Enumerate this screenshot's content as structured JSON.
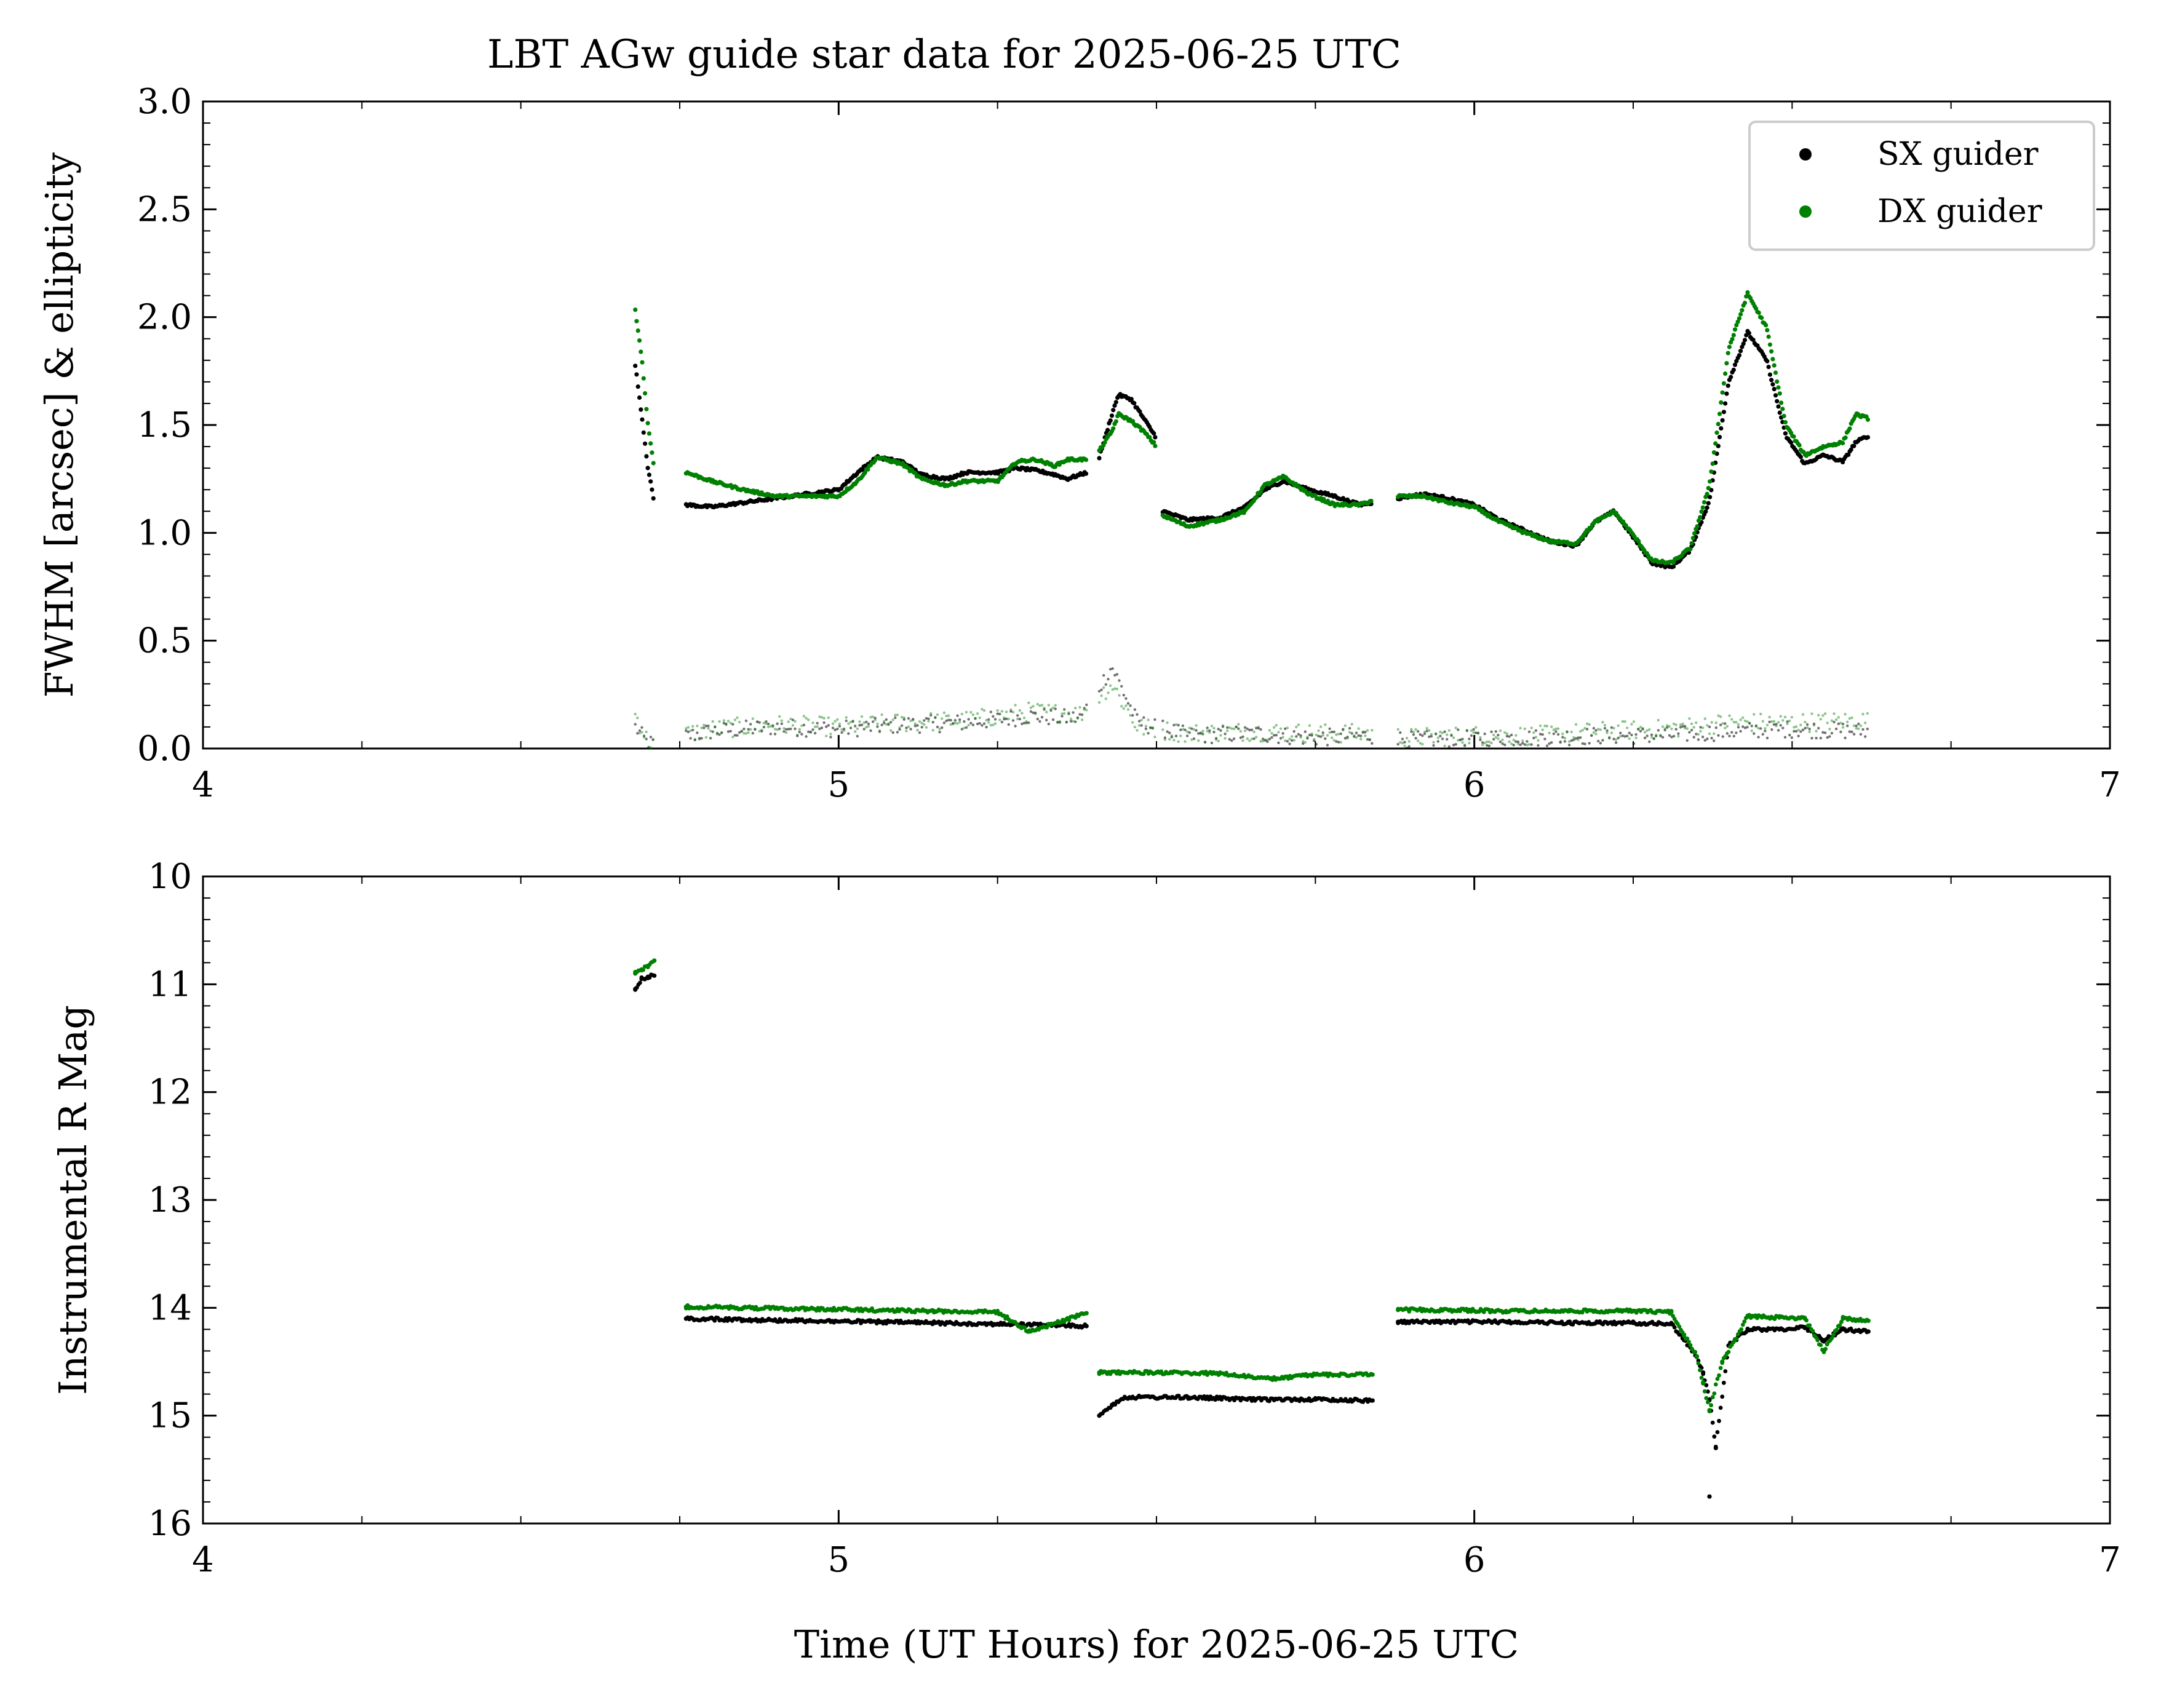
{
  "title": "LBT AGw guide star data for 2025-06-25 UTC",
  "colors": {
    "sx": "#000000",
    "dx": "#008000"
  },
  "chart_data": [
    {
      "type": "scatter",
      "panel": "top",
      "ylabel": "FWHM [arcsec] & ellipticity",
      "xlabel": "",
      "xlim": [
        4,
        7
      ],
      "ylim": [
        0.0,
        3.0
      ],
      "xticks": [
        "4",
        "5",
        "6",
        "7"
      ],
      "yticks": [
        "0.0",
        "0.5",
        "1.0",
        "1.5",
        "2.0",
        "2.5",
        "3.0"
      ],
      "legend": {
        "position": "top-right",
        "entries": [
          "SX guider",
          "DX guider"
        ]
      },
      "segments": [
        [
          4.68,
          4.71
        ],
        [
          4.76,
          5.39
        ],
        [
          5.41,
          5.5
        ],
        [
          5.51,
          5.84
        ],
        [
          5.88,
          6.62
        ]
      ],
      "series": [
        {
          "name": "SX guider",
          "kind": "fwhm",
          "points": [
            [
              4.68,
              1.78
            ],
            [
              4.69,
              1.55
            ],
            [
              4.7,
              1.3
            ],
            [
              4.71,
              1.14
            ],
            [
              4.76,
              1.13
            ],
            [
              4.8,
              1.12
            ],
            [
              4.85,
              1.14
            ],
            [
              4.9,
              1.16
            ],
            [
              4.95,
              1.18
            ],
            [
              5.0,
              1.2
            ],
            [
              5.03,
              1.28
            ],
            [
              5.06,
              1.35
            ],
            [
              5.1,
              1.33
            ],
            [
              5.13,
              1.27
            ],
            [
              5.17,
              1.25
            ],
            [
              5.2,
              1.28
            ],
            [
              5.25,
              1.28
            ],
            [
              5.28,
              1.3
            ],
            [
              5.31,
              1.29
            ],
            [
              5.34,
              1.27
            ],
            [
              5.36,
              1.25
            ],
            [
              5.39,
              1.28
            ],
            [
              5.41,
              1.35
            ],
            [
              5.43,
              1.55
            ],
            [
              5.44,
              1.64
            ],
            [
              5.46,
              1.62
            ],
            [
              5.48,
              1.53
            ],
            [
              5.5,
              1.44
            ],
            [
              5.51,
              1.1
            ],
            [
              5.55,
              1.06
            ],
            [
              5.6,
              1.07
            ],
            [
              5.64,
              1.12
            ],
            [
              5.67,
              1.2
            ],
            [
              5.7,
              1.24
            ],
            [
              5.74,
              1.2
            ],
            [
              5.78,
              1.17
            ],
            [
              5.82,
              1.13
            ],
            [
              5.84,
              1.14
            ],
            [
              5.88,
              1.16
            ],
            [
              5.92,
              1.18
            ],
            [
              5.96,
              1.16
            ],
            [
              6.0,
              1.13
            ],
            [
              6.04,
              1.06
            ],
            [
              6.08,
              1.01
            ],
            [
              6.12,
              0.96
            ],
            [
              6.16,
              0.94
            ],
            [
              6.19,
              1.05
            ],
            [
              6.22,
              1.1
            ],
            [
              6.25,
              0.98
            ],
            [
              6.28,
              0.86
            ],
            [
              6.31,
              0.84
            ],
            [
              6.34,
              0.92
            ],
            [
              6.37,
              1.15
            ],
            [
              6.4,
              1.7
            ],
            [
              6.43,
              1.93
            ],
            [
              6.46,
              1.8
            ],
            [
              6.49,
              1.45
            ],
            [
              6.52,
              1.32
            ],
            [
              6.55,
              1.36
            ],
            [
              6.58,
              1.33
            ],
            [
              6.6,
              1.42
            ],
            [
              6.62,
              1.45
            ]
          ]
        },
        {
          "name": "DX guider",
          "kind": "fwhm",
          "points": [
            [
              4.68,
              2.03
            ],
            [
              4.69,
              1.82
            ],
            [
              4.7,
              1.5
            ],
            [
              4.71,
              1.3
            ],
            [
              4.76,
              1.28
            ],
            [
              4.8,
              1.24
            ],
            [
              4.85,
              1.2
            ],
            [
              4.9,
              1.17
            ],
            [
              4.95,
              1.17
            ],
            [
              5.0,
              1.17
            ],
            [
              5.03,
              1.24
            ],
            [
              5.06,
              1.35
            ],
            [
              5.1,
              1.32
            ],
            [
              5.13,
              1.25
            ],
            [
              5.17,
              1.22
            ],
            [
              5.2,
              1.24
            ],
            [
              5.25,
              1.24
            ],
            [
              5.28,
              1.33
            ],
            [
              5.31,
              1.34
            ],
            [
              5.34,
              1.31
            ],
            [
              5.36,
              1.34
            ],
            [
              5.39,
              1.34
            ],
            [
              5.41,
              1.38
            ],
            [
              5.43,
              1.47
            ],
            [
              5.44,
              1.55
            ],
            [
              5.46,
              1.52
            ],
            [
              5.48,
              1.47
            ],
            [
              5.5,
              1.4
            ],
            [
              5.51,
              1.08
            ],
            [
              5.55,
              1.03
            ],
            [
              5.6,
              1.06
            ],
            [
              5.64,
              1.1
            ],
            [
              5.67,
              1.22
            ],
            [
              5.7,
              1.26
            ],
            [
              5.74,
              1.18
            ],
            [
              5.78,
              1.13
            ],
            [
              5.82,
              1.13
            ],
            [
              5.84,
              1.15
            ],
            [
              5.88,
              1.17
            ],
            [
              5.92,
              1.17
            ],
            [
              5.96,
              1.14
            ],
            [
              6.0,
              1.12
            ],
            [
              6.04,
              1.05
            ],
            [
              6.08,
              1.0
            ],
            [
              6.12,
              0.96
            ],
            [
              6.16,
              0.95
            ],
            [
              6.19,
              1.05
            ],
            [
              6.22,
              1.1
            ],
            [
              6.25,
              0.99
            ],
            [
              6.28,
              0.87
            ],
            [
              6.31,
              0.86
            ],
            [
              6.34,
              0.93
            ],
            [
              6.37,
              1.22
            ],
            [
              6.4,
              1.85
            ],
            [
              6.43,
              2.11
            ],
            [
              6.46,
              1.95
            ],
            [
              6.49,
              1.5
            ],
            [
              6.52,
              1.36
            ],
            [
              6.55,
              1.4
            ],
            [
              6.58,
              1.42
            ],
            [
              6.6,
              1.55
            ],
            [
              6.62,
              1.53
            ]
          ]
        },
        {
          "name": "SX guider",
          "kind": "ellipticity",
          "points": [
            [
              4.68,
              0.1
            ],
            [
              4.7,
              0.02
            ],
            [
              4.8,
              0.08
            ],
            [
              4.9,
              0.1
            ],
            [
              5.0,
              0.09
            ],
            [
              5.1,
              0.11
            ],
            [
              5.2,
              0.12
            ],
            [
              5.3,
              0.15
            ],
            [
              5.38,
              0.14
            ],
            [
              5.43,
              0.38
            ],
            [
              5.47,
              0.12
            ],
            [
              5.55,
              0.06
            ],
            [
              5.65,
              0.07
            ],
            [
              5.75,
              0.05
            ],
            [
              5.84,
              0.06
            ],
            [
              5.9,
              0.04
            ],
            [
              6.0,
              0.05
            ],
            [
              6.1,
              0.05
            ],
            [
              6.2,
              0.06
            ],
            [
              6.3,
              0.06
            ],
            [
              6.4,
              0.08
            ],
            [
              6.5,
              0.09
            ],
            [
              6.62,
              0.08
            ]
          ]
        },
        {
          "name": "DX guider",
          "kind": "ellipticity",
          "points": [
            [
              4.68,
              0.16
            ],
            [
              4.7,
              0.03
            ],
            [
              4.8,
              0.09
            ],
            [
              4.9,
              0.11
            ],
            [
              5.0,
              0.1
            ],
            [
              5.1,
              0.12
            ],
            [
              5.2,
              0.13
            ],
            [
              5.3,
              0.17
            ],
            [
              5.38,
              0.16
            ],
            [
              5.43,
              0.3
            ],
            [
              5.47,
              0.1
            ],
            [
              5.55,
              0.07
            ],
            [
              5.65,
              0.08
            ],
            [
              5.75,
              0.07
            ],
            [
              5.84,
              0.07
            ],
            [
              5.9,
              0.05
            ],
            [
              6.0,
              0.06
            ],
            [
              6.1,
              0.06
            ],
            [
              6.2,
              0.08
            ],
            [
              6.3,
              0.09
            ],
            [
              6.4,
              0.12
            ],
            [
              6.5,
              0.12
            ],
            [
              6.62,
              0.13
            ]
          ]
        }
      ]
    },
    {
      "type": "scatter",
      "panel": "bottom",
      "ylabel": "Instrumental R Mag",
      "xlabel": "Time (UT Hours) for 2025-06-25 UTC",
      "xlim": [
        4,
        7
      ],
      "ylim": [
        16,
        10
      ],
      "y_inverted": true,
      "xticks": [
        "4",
        "5",
        "6",
        "7"
      ],
      "yticks": [
        "10",
        "11",
        "12",
        "13",
        "14",
        "15",
        "16"
      ],
      "series": [
        {
          "name": "SX guider",
          "points": [
            [
              4.68,
              11.05
            ],
            [
              4.69,
              10.95
            ],
            [
              4.7,
              10.93
            ],
            [
              4.71,
              10.92
            ],
            [
              4.76,
              14.1
            ],
            [
              4.85,
              14.11
            ],
            [
              4.95,
              14.12
            ],
            [
              5.05,
              14.13
            ],
            [
              5.15,
              14.14
            ],
            [
              5.25,
              14.15
            ],
            [
              5.39,
              14.17
            ],
            [
              5.41,
              15.0
            ],
            [
              5.43,
              14.9
            ],
            [
              5.45,
              14.83
            ],
            [
              5.55,
              14.83
            ],
            [
              5.65,
              14.85
            ],
            [
              5.75,
              14.85
            ],
            [
              5.84,
              14.86
            ],
            [
              5.88,
              14.13
            ],
            [
              5.95,
              14.13
            ],
            [
              6.05,
              14.13
            ],
            [
              6.15,
              14.14
            ],
            [
              6.25,
              14.14
            ],
            [
              6.31,
              14.15
            ],
            [
              6.33,
              14.3
            ],
            [
              6.35,
              14.45
            ],
            [
              6.36,
              14.6
            ],
            [
              6.37,
              14.85
            ],
            [
              6.38,
              15.3
            ],
            [
              6.37,
              15.75
            ],
            [
              6.4,
              14.35
            ],
            [
              6.43,
              14.2
            ],
            [
              6.48,
              14.2
            ],
            [
              6.52,
              14.18
            ],
            [
              6.55,
              14.3
            ],
            [
              6.58,
              14.2
            ],
            [
              6.62,
              14.22
            ]
          ]
        },
        {
          "name": "DX guider",
          "points": [
            [
              4.68,
              10.9
            ],
            [
              4.69,
              10.87
            ],
            [
              4.7,
              10.83
            ],
            [
              4.71,
              10.78
            ],
            [
              4.76,
              13.99
            ],
            [
              4.85,
              14.0
            ],
            [
              4.95,
              14.01
            ],
            [
              5.05,
              14.02
            ],
            [
              5.15,
              14.03
            ],
            [
              5.25,
              14.04
            ],
            [
              5.3,
              14.22
            ],
            [
              5.39,
              14.05
            ],
            [
              5.41,
              14.6
            ],
            [
              5.5,
              14.6
            ],
            [
              5.6,
              14.61
            ],
            [
              5.68,
              14.66
            ],
            [
              5.75,
              14.62
            ],
            [
              5.84,
              14.62
            ],
            [
              5.88,
              14.02
            ],
            [
              5.95,
              14.02
            ],
            [
              6.05,
              14.03
            ],
            [
              6.15,
              14.03
            ],
            [
              6.25,
              14.03
            ],
            [
              6.31,
              14.04
            ],
            [
              6.33,
              14.25
            ],
            [
              6.35,
              14.45
            ],
            [
              6.36,
              14.7
            ],
            [
              6.37,
              14.95
            ],
            [
              6.39,
              14.5
            ],
            [
              6.41,
              14.3
            ],
            [
              6.43,
              14.08
            ],
            [
              6.48,
              14.09
            ],
            [
              6.52,
              14.1
            ],
            [
              6.55,
              14.4
            ],
            [
              6.58,
              14.1
            ],
            [
              6.62,
              14.12
            ]
          ]
        }
      ]
    }
  ]
}
